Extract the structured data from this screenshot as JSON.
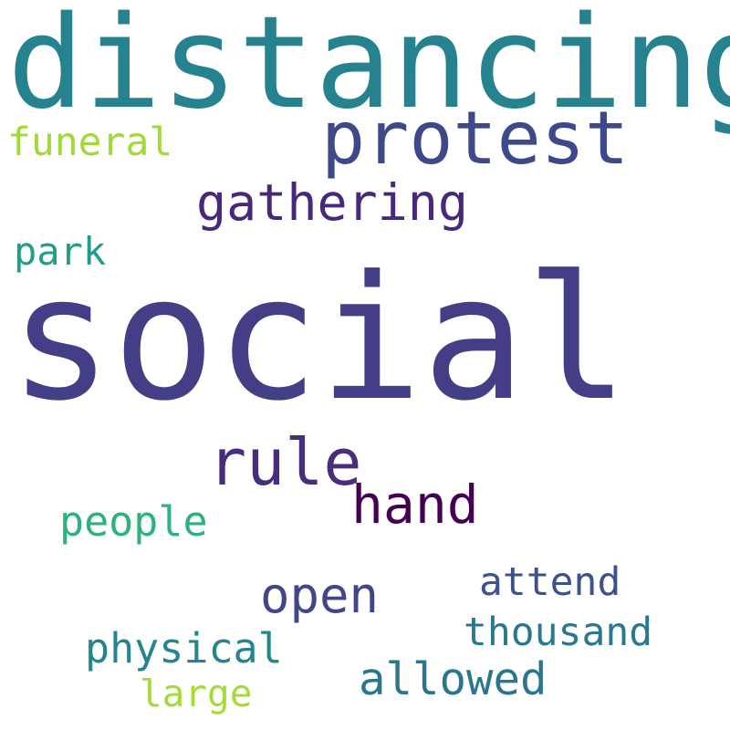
{
  "words": [
    {
      "text": "distancing",
      "color": "#26828e"
    },
    {
      "text": "protest",
      "color": "#3e4989"
    },
    {
      "text": "funeral",
      "color": "#a0da39"
    },
    {
      "text": "gathering",
      "color": "#482878"
    },
    {
      "text": "park",
      "color": "#1f9e89"
    },
    {
      "text": "social",
      "color": "#433e85"
    },
    {
      "text": "rule",
      "color": "#472d7b"
    },
    {
      "text": "hand",
      "color": "#440154"
    },
    {
      "text": "people",
      "color": "#2db27d"
    },
    {
      "text": "open",
      "color": "#404688"
    },
    {
      "text": "attend",
      "color": "#3b528b"
    },
    {
      "text": "thousand",
      "color": "#2a788e"
    },
    {
      "text": "physical",
      "color": "#25858e"
    },
    {
      "text": "allowed",
      "color": "#2a768e"
    },
    {
      "text": "large",
      "color": "#a5db36"
    }
  ]
}
